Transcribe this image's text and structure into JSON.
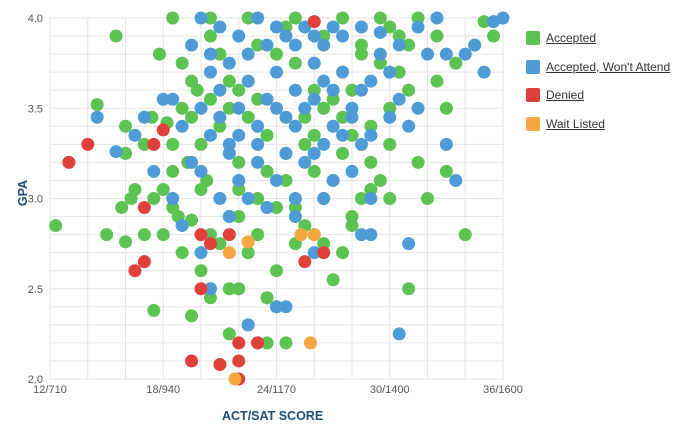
{
  "chart_data": {
    "type": "scatter",
    "xlabel": "ACT/SAT SCORE",
    "ylabel": "GPA",
    "xlim": [
      12,
      36
    ],
    "ylim": [
      2.0,
      4.0
    ],
    "x_ticks": [
      "12/710",
      "18/940",
      "24/1170",
      "30/1400",
      "36/1600"
    ],
    "y_ticks": [
      "2.0",
      "2.5",
      "3.0",
      "3.5",
      "4.0"
    ],
    "grid": true,
    "legend_position": "right",
    "series": [
      {
        "name": "Accepted",
        "color": "#5cc252",
        "points": [
          [
            12.3,
            2.85
          ],
          [
            14.5,
            3.52
          ],
          [
            15.5,
            3.9
          ],
          [
            16.0,
            3.4
          ],
          [
            15.0,
            2.8
          ],
          [
            16.0,
            2.76
          ],
          [
            15.8,
            2.95
          ],
          [
            16.3,
            3.0
          ],
          [
            17.0,
            2.8
          ],
          [
            17.4,
            3.45
          ],
          [
            17.8,
            3.8
          ],
          [
            18.2,
            3.42
          ],
          [
            18.5,
            3.3
          ],
          [
            19.0,
            3.75
          ],
          [
            19.3,
            3.2
          ],
          [
            19.8,
            3.6
          ],
          [
            19.5,
            2.88
          ],
          [
            20.0,
            2.6
          ],
          [
            20.3,
            3.1
          ],
          [
            17.5,
            2.38
          ],
          [
            18.0,
            2.8
          ],
          [
            18.8,
            2.9
          ],
          [
            19.5,
            2.35
          ],
          [
            20.5,
            2.45
          ],
          [
            21.5,
            2.5
          ],
          [
            22.5,
            2.3
          ],
          [
            23.5,
            2.45
          ],
          [
            24.0,
            2.6
          ],
          [
            25.0,
            2.75
          ],
          [
            24.5,
            2.2
          ],
          [
            26.0,
            2.8
          ],
          [
            27.0,
            2.55
          ],
          [
            28.0,
            2.9
          ],
          [
            29.5,
            3.1
          ],
          [
            30.0,
            3.5
          ],
          [
            30.5,
            3.7
          ],
          [
            31.5,
            3.2
          ],
          [
            32.0,
            3.0
          ],
          [
            32.5,
            3.65
          ],
          [
            33.5,
            3.75
          ],
          [
            34.0,
            2.8
          ],
          [
            35.5,
            3.9
          ],
          [
            31.0,
            2.5
          ],
          [
            33.0,
            3.15
          ],
          [
            20.5,
            3.9
          ],
          [
            21.0,
            3.8
          ],
          [
            22.0,
            3.6
          ],
          [
            23.0,
            3.55
          ],
          [
            24.0,
            3.8
          ],
          [
            25.0,
            3.75
          ],
          [
            26.0,
            3.6
          ],
          [
            27.0,
            3.55
          ],
          [
            28.0,
            3.6
          ],
          [
            29.0,
            3.4
          ],
          [
            30.0,
            3.3
          ],
          [
            18.5,
            4.0
          ],
          [
            20.5,
            4.0
          ],
          [
            22.5,
            4.0
          ],
          [
            25.0,
            4.0
          ],
          [
            27.5,
            4.0
          ],
          [
            29.5,
            4.0
          ],
          [
            31.5,
            4.0
          ],
          [
            35.0,
            3.98
          ],
          [
            22.0,
            3.2
          ],
          [
            23.0,
            3.0
          ],
          [
            24.5,
            3.1
          ],
          [
            26.5,
            3.0
          ],
          [
            28.5,
            3.0
          ],
          [
            21.5,
            2.9
          ],
          [
            22.5,
            2.7
          ],
          [
            25.5,
            2.85
          ],
          [
            27.5,
            2.7
          ],
          [
            19.0,
            3.5
          ],
          [
            21.0,
            3.4
          ],
          [
            23.5,
            3.35
          ],
          [
            25.5,
            3.3
          ],
          [
            27.5,
            3.25
          ],
          [
            29.0,
            3.2
          ],
          [
            20.0,
            3.3
          ],
          [
            22.0,
            2.9
          ],
          [
            24.0,
            2.95
          ],
          [
            26.0,
            3.15
          ],
          [
            28.0,
            3.35
          ],
          [
            30.5,
            3.9
          ],
          [
            31.0,
            3.85
          ],
          [
            32.5,
            3.9
          ],
          [
            23.0,
            3.85
          ],
          [
            24.5,
            3.95
          ],
          [
            26.5,
            3.9
          ],
          [
            28.5,
            3.8
          ],
          [
            29.5,
            3.75
          ],
          [
            31.0,
            3.6
          ],
          [
            20.0,
            3.05
          ],
          [
            18.5,
            3.15
          ],
          [
            17.0,
            3.3
          ],
          [
            16.5,
            3.05
          ],
          [
            17.5,
            3.0
          ],
          [
            16.0,
            3.25
          ],
          [
            18.5,
            2.95
          ],
          [
            19.0,
            2.7
          ],
          [
            21.0,
            2.75
          ],
          [
            23.0,
            2.8
          ],
          [
            25.0,
            2.95
          ],
          [
            26.5,
            2.75
          ],
          [
            22.0,
            2.5
          ],
          [
            24.0,
            2.4
          ],
          [
            20.5,
            2.5
          ],
          [
            21.5,
            2.25
          ],
          [
            23.5,
            2.2
          ],
          [
            28.5,
            3.85
          ],
          [
            33.0,
            3.5
          ],
          [
            30.0,
            3.95
          ],
          [
            34.5,
            3.85
          ],
          [
            19.5,
            3.65
          ],
          [
            21.5,
            3.65
          ],
          [
            25.5,
            3.45
          ],
          [
            27.0,
            3.1
          ],
          [
            29.0,
            3.05
          ],
          [
            18.0,
            3.05
          ],
          [
            22.5,
            3.45
          ],
          [
            24.5,
            3.25
          ],
          [
            26.0,
            3.35
          ],
          [
            20.5,
            2.8
          ],
          [
            22.0,
            3.05
          ],
          [
            23.5,
            3.15
          ],
          [
            19.5,
            3.45
          ],
          [
            20.5,
            3.55
          ],
          [
            21.5,
            3.5
          ],
          [
            28.0,
            2.85
          ],
          [
            30.0,
            3.0
          ],
          [
            26.5,
            3.5
          ],
          [
            27.5,
            3.45
          ]
        ]
      },
      {
        "name": "Accepted, Won't Attend",
        "color": "#4e9bd6",
        "points": [
          [
            14.5,
            3.45
          ],
          [
            16.5,
            3.35
          ],
          [
            17.5,
            3.15
          ],
          [
            18.5,
            3.55
          ],
          [
            19.0,
            3.4
          ],
          [
            20.0,
            3.5
          ],
          [
            20.5,
            3.7
          ],
          [
            21.0,
            3.6
          ],
          [
            21.5,
            3.3
          ],
          [
            22.0,
            3.5
          ],
          [
            22.5,
            3.65
          ],
          [
            23.0,
            3.4
          ],
          [
            23.5,
            3.55
          ],
          [
            24.0,
            3.7
          ],
          [
            24.5,
            3.45
          ],
          [
            25.0,
            3.6
          ],
          [
            25.5,
            3.5
          ],
          [
            26.0,
            3.75
          ],
          [
            26.5,
            3.65
          ],
          [
            27.0,
            3.4
          ],
          [
            27.5,
            3.7
          ],
          [
            28.0,
            3.5
          ],
          [
            28.5,
            3.6
          ],
          [
            29.0,
            3.65
          ],
          [
            29.5,
            3.8
          ],
          [
            30.0,
            3.7
          ],
          [
            30.5,
            3.55
          ],
          [
            31.0,
            3.4
          ],
          [
            31.5,
            3.5
          ],
          [
            32.0,
            3.8
          ],
          [
            33.0,
            3.3
          ],
          [
            33.5,
            3.1
          ],
          [
            34.0,
            3.8
          ],
          [
            35.5,
            3.98
          ],
          [
            36.0,
            4.0
          ],
          [
            31.0,
            2.75
          ],
          [
            30.5,
            2.25
          ],
          [
            24.0,
            2.4
          ],
          [
            24.5,
            2.4
          ],
          [
            23.0,
            2.2
          ],
          [
            22.5,
            2.3
          ],
          [
            21.5,
            2.9
          ],
          [
            20.5,
            2.5
          ],
          [
            21.0,
            3.0
          ],
          [
            22.0,
            3.1
          ],
          [
            23.0,
            3.2
          ],
          [
            24.0,
            3.1
          ],
          [
            25.0,
            3.0
          ],
          [
            26.0,
            3.25
          ],
          [
            27.0,
            3.1
          ],
          [
            28.0,
            3.15
          ],
          [
            29.0,
            3.0
          ],
          [
            26.5,
            3.0
          ],
          [
            28.5,
            2.8
          ],
          [
            26.0,
            2.7
          ],
          [
            25.0,
            2.9
          ],
          [
            23.5,
            2.95
          ],
          [
            22.5,
            3.0
          ],
          [
            21.5,
            3.25
          ],
          [
            20.5,
            3.35
          ],
          [
            19.5,
            3.2
          ],
          [
            18.5,
            3.0
          ],
          [
            19.0,
            2.85
          ],
          [
            20.0,
            2.7
          ],
          [
            29.0,
            2.8
          ],
          [
            23.5,
            3.85
          ],
          [
            24.5,
            3.9
          ],
          [
            25.5,
            3.95
          ],
          [
            26.5,
            3.85
          ],
          [
            27.5,
            3.9
          ],
          [
            28.5,
            3.95
          ],
          [
            29.5,
            3.92
          ],
          [
            30.5,
            3.85
          ],
          [
            31.5,
            3.95
          ],
          [
            32.5,
            4.0
          ],
          [
            20.0,
            4.0
          ],
          [
            21.0,
            3.95
          ],
          [
            22.0,
            3.9
          ],
          [
            23.0,
            4.0
          ],
          [
            24.0,
            3.95
          ],
          [
            25.0,
            3.85
          ],
          [
            26.0,
            3.9
          ],
          [
            27.0,
            3.95
          ],
          [
            19.5,
            3.85
          ],
          [
            20.5,
            3.8
          ],
          [
            21.5,
            3.75
          ],
          [
            22.5,
            3.8
          ],
          [
            24.0,
            3.5
          ],
          [
            25.0,
            3.4
          ],
          [
            26.0,
            3.55
          ],
          [
            27.0,
            3.6
          ],
          [
            28.0,
            3.45
          ],
          [
            29.0,
            3.35
          ],
          [
            30.0,
            3.45
          ],
          [
            24.5,
            3.25
          ],
          [
            25.5,
            3.2
          ],
          [
            26.5,
            3.3
          ],
          [
            27.5,
            3.35
          ],
          [
            28.5,
            3.3
          ],
          [
            23.0,
            3.3
          ],
          [
            22.0,
            3.35
          ],
          [
            21.0,
            3.45
          ],
          [
            20.0,
            3.15
          ],
          [
            18.0,
            3.55
          ],
          [
            17.0,
            3.45
          ],
          [
            15.5,
            3.26
          ],
          [
            33.0,
            3.8
          ],
          [
            34.5,
            3.85
          ],
          [
            35.0,
            3.7
          ]
        ]
      },
      {
        "name": "Denied",
        "color": "#e0403a",
        "points": [
          [
            13.0,
            3.2
          ],
          [
            14.0,
            3.3
          ],
          [
            17.5,
            3.3
          ],
          [
            16.5,
            2.6
          ],
          [
            17.0,
            2.65
          ],
          [
            18.0,
            3.38
          ],
          [
            20.0,
            2.8
          ],
          [
            20.5,
            2.75
          ],
          [
            21.5,
            2.8
          ],
          [
            20.0,
            2.5
          ],
          [
            19.5,
            2.1
          ],
          [
            21.0,
            2.08
          ],
          [
            22.0,
            2.1
          ],
          [
            22.0,
            2.2
          ],
          [
            23.0,
            2.2
          ],
          [
            22.0,
            2.0
          ],
          [
            25.5,
            2.65
          ],
          [
            26.5,
            2.7
          ],
          [
            26.0,
            3.98
          ],
          [
            17.0,
            2.95
          ]
        ]
      },
      {
        "name": "Wait Listed",
        "color": "#f5a742",
        "points": [
          [
            21.5,
            2.7
          ],
          [
            22.5,
            2.76
          ],
          [
            21.8,
            2.0
          ],
          [
            25.8,
            2.2
          ],
          [
            26.0,
            2.8
          ],
          [
            25.3,
            2.8
          ]
        ]
      }
    ]
  }
}
